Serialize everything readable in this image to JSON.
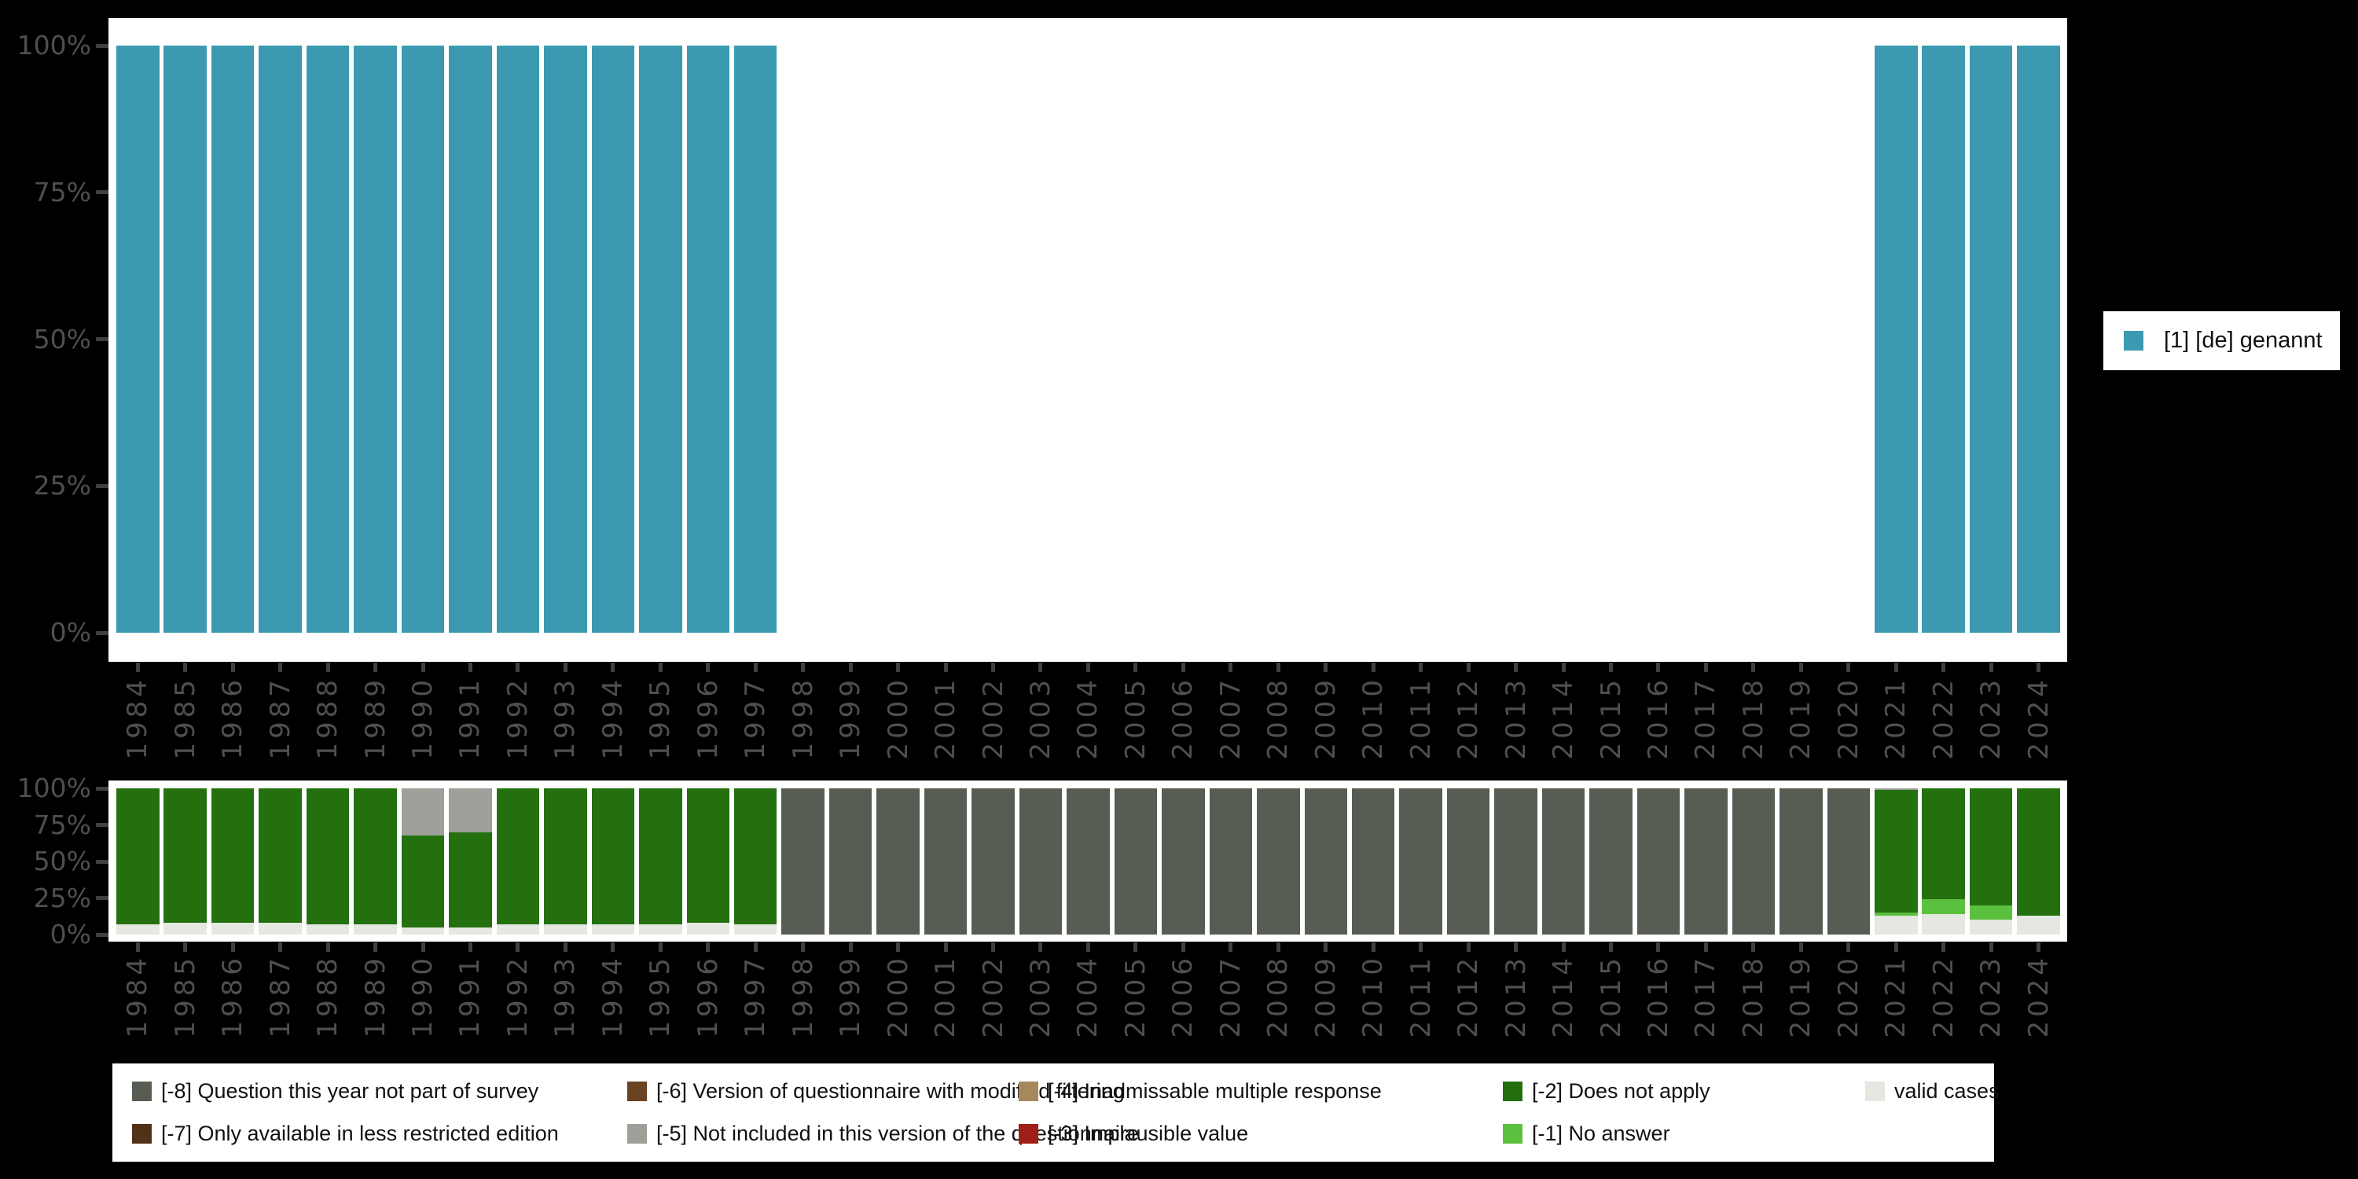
{
  "page": {
    "background": "#000000",
    "plot_background": "#ffffff",
    "axis_label_color": "#4f4f4f",
    "tick_color": "#404040"
  },
  "axes": {
    "ytick_labels": [
      "100%",
      "75%",
      "50%",
      "25%",
      "0%"
    ],
    "years": [
      "1984",
      "1985",
      "1986",
      "1987",
      "1988",
      "1989",
      "1990",
      "1991",
      "1992",
      "1993",
      "1994",
      "1995",
      "1996",
      "1997",
      "1998",
      "1999",
      "2000",
      "2001",
      "2002",
      "2003",
      "2004",
      "2005",
      "2006",
      "2007",
      "2008",
      "2009",
      "2010",
      "2011",
      "2012",
      "2013",
      "2014",
      "2015",
      "2016",
      "2017",
      "2018",
      "2019",
      "2020",
      "2021",
      "2022",
      "2023",
      "2024"
    ]
  },
  "top_legend": {
    "label": "[1] [de] genannt",
    "color": "#3b9ab2"
  },
  "bottom_legend": {
    "order": [
      "-8",
      "-6",
      "-4",
      "-2",
      "valid",
      "-7",
      "-5",
      "-3",
      "-1"
    ]
  },
  "chart_data": [
    {
      "type": "bar",
      "stacked": false,
      "title": "",
      "xlabel": "",
      "ylabel": "",
      "unit": "percent",
      "ylim": [
        0,
        100
      ],
      "grid": false,
      "legend_position": "right",
      "categories": [
        "1984",
        "1985",
        "1986",
        "1987",
        "1988",
        "1989",
        "1990",
        "1991",
        "1992",
        "1993",
        "1994",
        "1995",
        "1996",
        "1997",
        "1998",
        "1999",
        "2000",
        "2001",
        "2002",
        "2003",
        "2004",
        "2005",
        "2006",
        "2007",
        "2008",
        "2009",
        "2010",
        "2011",
        "2012",
        "2013",
        "2014",
        "2015",
        "2016",
        "2017",
        "2018",
        "2019",
        "2020",
        "2021",
        "2022",
        "2023",
        "2024"
      ],
      "series": [
        {
          "key": "genannt",
          "name": "[1] [de] genannt",
          "color": "#3b9ab2",
          "values": [
            100,
            100,
            100,
            100,
            100,
            100,
            100,
            100,
            100,
            100,
            100,
            100,
            100,
            100,
            null,
            null,
            null,
            null,
            null,
            null,
            null,
            null,
            null,
            null,
            null,
            null,
            null,
            null,
            null,
            null,
            null,
            null,
            null,
            null,
            null,
            null,
            null,
            100,
            100,
            100,
            100
          ]
        }
      ]
    },
    {
      "type": "bar",
      "stacked": true,
      "title": "",
      "xlabel": "",
      "ylabel": "",
      "unit": "percent",
      "ylim": [
        0,
        100
      ],
      "grid": false,
      "legend_position": "bottom",
      "categories": [
        "1984",
        "1985",
        "1986",
        "1987",
        "1988",
        "1989",
        "1990",
        "1991",
        "1992",
        "1993",
        "1994",
        "1995",
        "1996",
        "1997",
        "1998",
        "1999",
        "2000",
        "2001",
        "2002",
        "2003",
        "2004",
        "2005",
        "2006",
        "2007",
        "2008",
        "2009",
        "2010",
        "2011",
        "2012",
        "2013",
        "2014",
        "2015",
        "2016",
        "2017",
        "2018",
        "2019",
        "2020",
        "2021",
        "2022",
        "2023",
        "2024"
      ],
      "series": [
        {
          "key": "valid",
          "name": "valid cases",
          "color": "#e4e8e0",
          "values": [
            7,
            8,
            8,
            8,
            7,
            7,
            5,
            5,
            7,
            7,
            7,
            7,
            8,
            7,
            0,
            0,
            0,
            0,
            0,
            0,
            0,
            0,
            0,
            0,
            0,
            0,
            0,
            0,
            0,
            0,
            0,
            0,
            0,
            0,
            0,
            0,
            0,
            13,
            14,
            10,
            13
          ]
        },
        {
          "key": "-1",
          "name": "[-1] No answer",
          "color": "#5bc03e",
          "values": [
            0,
            0,
            0,
            0,
            0,
            0,
            0,
            0,
            0,
            0,
            0,
            0,
            0,
            0,
            0,
            0,
            0,
            0,
            0,
            0,
            0,
            0,
            0,
            0,
            0,
            0,
            0,
            0,
            0,
            0,
            0,
            0,
            0,
            0,
            0,
            0,
            0,
            2,
            10,
            10,
            0
          ]
        },
        {
          "key": "-2",
          "name": "[-2] Does not apply",
          "color": "#24700f",
          "values": [
            93,
            92,
            92,
            92,
            93,
            93,
            63,
            65,
            93,
            93,
            93,
            93,
            92,
            93,
            0,
            0,
            0,
            0,
            0,
            0,
            0,
            0,
            0,
            0,
            0,
            0,
            0,
            0,
            0,
            0,
            0,
            0,
            0,
            0,
            0,
            0,
            0,
            84,
            76,
            80,
            87
          ]
        },
        {
          "key": "-3",
          "name": "[-3] Implausible value",
          "color": "#a02019",
          "values": [
            0,
            0,
            0,
            0,
            0,
            0,
            0,
            0,
            0,
            0,
            0,
            0,
            0,
            0,
            0,
            0,
            0,
            0,
            0,
            0,
            0,
            0,
            0,
            0,
            0,
            0,
            0,
            0,
            0,
            0,
            0,
            0,
            0,
            0,
            0,
            0,
            0,
            0,
            0,
            0,
            0
          ]
        },
        {
          "key": "-4",
          "name": "[-4] Inadmissable multiple response",
          "color": "#a5895d",
          "values": [
            0,
            0,
            0,
            0,
            0,
            0,
            0,
            0,
            0,
            0,
            0,
            0,
            0,
            0,
            0,
            0,
            0,
            0,
            0,
            0,
            0,
            0,
            0,
            0,
            0,
            0,
            0,
            0,
            0,
            0,
            0,
            0,
            0,
            0,
            0,
            0,
            0,
            0,
            0,
            0,
            0
          ]
        },
        {
          "key": "-5",
          "name": "[-5] Not included in this version of the questionnaire",
          "color": "#9d9f98",
          "values": [
            0,
            0,
            0,
            0,
            0,
            0,
            32,
            30,
            0,
            0,
            0,
            0,
            0,
            0,
            0,
            0,
            0,
            0,
            0,
            0,
            0,
            0,
            0,
            0,
            0,
            0,
            0,
            0,
            0,
            0,
            0,
            0,
            0,
            0,
            0,
            0,
            0,
            1,
            0,
            0,
            0
          ]
        },
        {
          "key": "-6",
          "name": "[-6] Version of questionnaire with modified filtering",
          "color": "#6a4323",
          "values": [
            0,
            0,
            0,
            0,
            0,
            0,
            0,
            0,
            0,
            0,
            0,
            0,
            0,
            0,
            0,
            0,
            0,
            0,
            0,
            0,
            0,
            0,
            0,
            0,
            0,
            0,
            0,
            0,
            0,
            0,
            0,
            0,
            0,
            0,
            0,
            0,
            0,
            0,
            0,
            0,
            0
          ]
        },
        {
          "key": "-7",
          "name": "[-7] Only available in less restricted edition",
          "color": "#523217",
          "values": [
            0,
            0,
            0,
            0,
            0,
            0,
            0,
            0,
            0,
            0,
            0,
            0,
            0,
            0,
            0,
            0,
            0,
            0,
            0,
            0,
            0,
            0,
            0,
            0,
            0,
            0,
            0,
            0,
            0,
            0,
            0,
            0,
            0,
            0,
            0,
            0,
            0,
            0,
            0,
            0,
            0
          ]
        },
        {
          "key": "-8",
          "name": "[-8] Question this year not part of survey",
          "color": "#575d53",
          "values": [
            0,
            0,
            0,
            0,
            0,
            0,
            0,
            0,
            0,
            0,
            0,
            0,
            0,
            0,
            100,
            100,
            100,
            100,
            100,
            100,
            100,
            100,
            100,
            100,
            100,
            100,
            100,
            100,
            100,
            100,
            100,
            100,
            100,
            100,
            100,
            100,
            100,
            0,
            0,
            0,
            0
          ]
        }
      ]
    }
  ]
}
